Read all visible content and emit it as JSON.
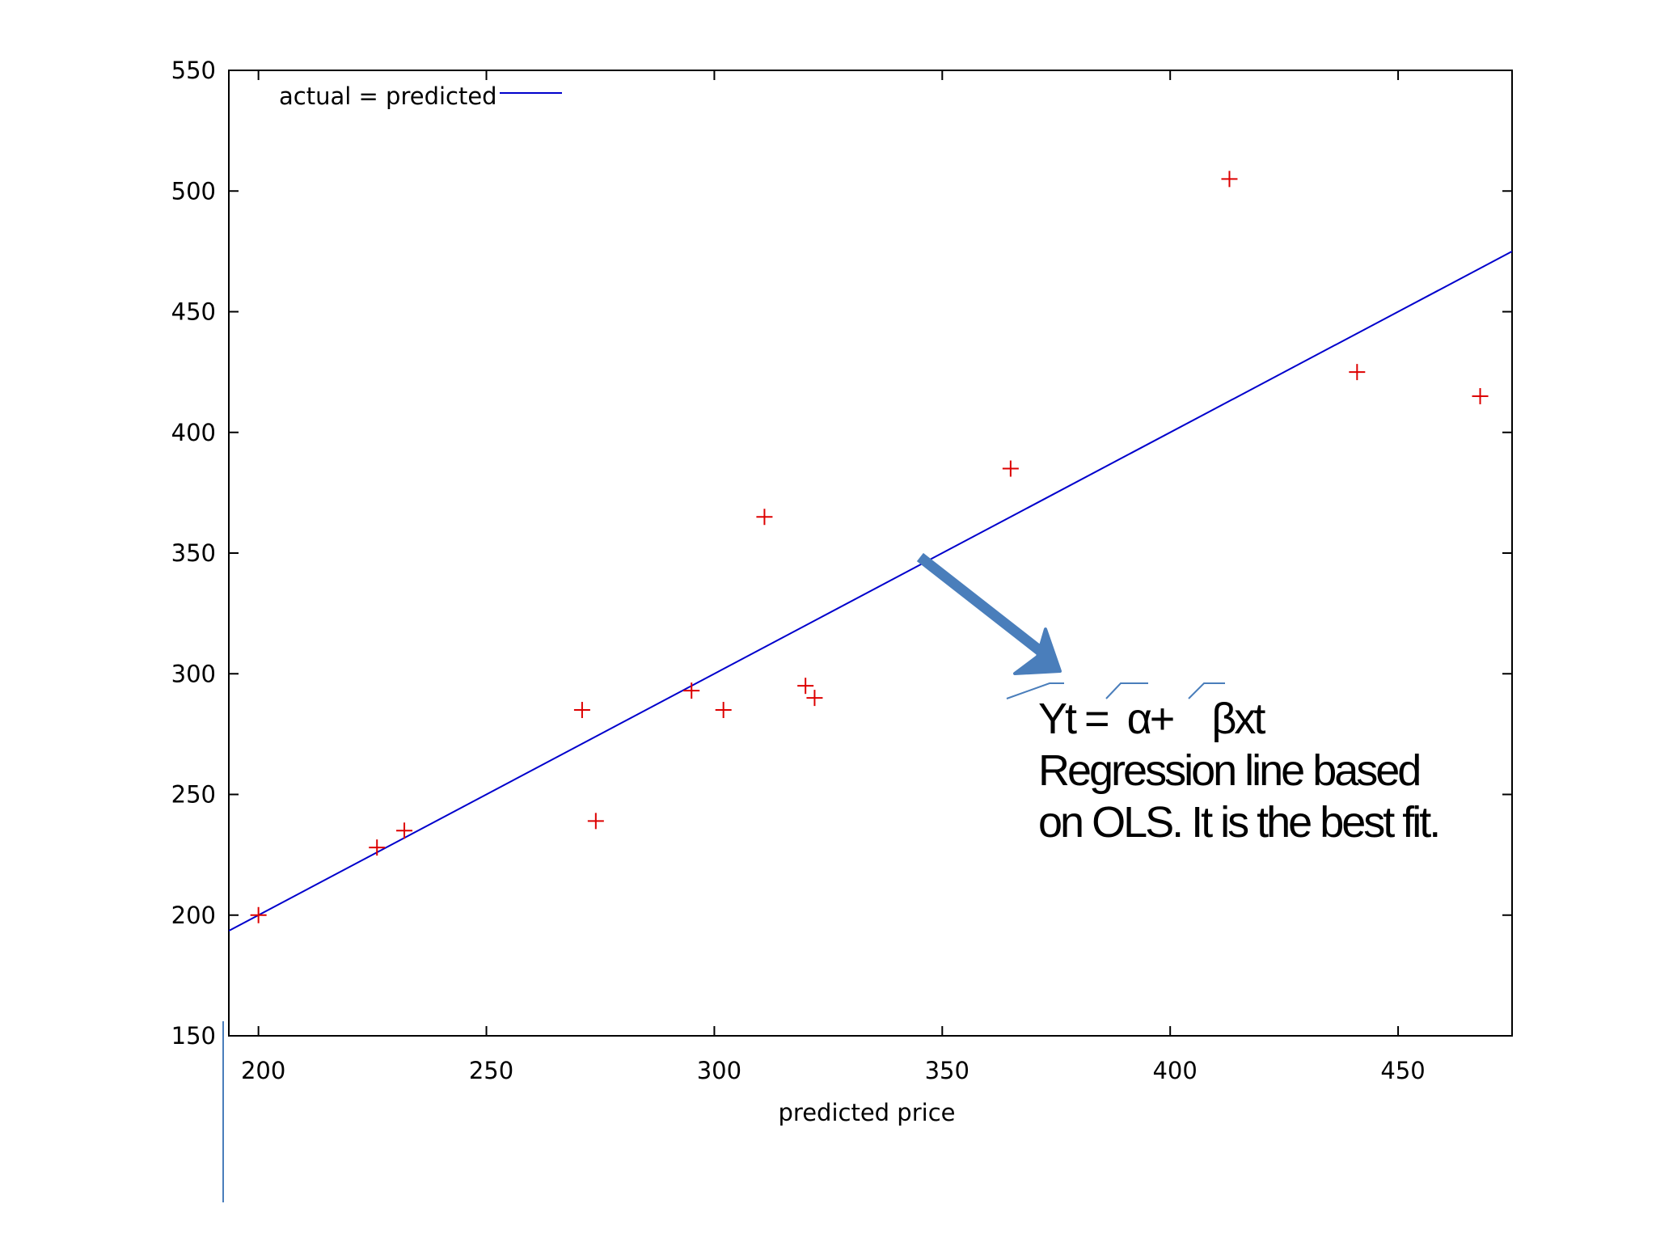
{
  "chart_data": {
    "type": "scatter",
    "title": "",
    "xlabel": "predicted price",
    "ylabel": "",
    "xlim": [
      193.5,
      475
    ],
    "ylim": [
      150,
      550
    ],
    "x_ticks": [
      200,
      250,
      300,
      350,
      400,
      450
    ],
    "y_ticks": [
      150,
      200,
      250,
      300,
      350,
      400,
      450,
      500,
      550
    ],
    "grid": false,
    "legend": {
      "position": "top-left",
      "entries": [
        {
          "label": "actual = predicted",
          "style": "line",
          "color": "#0000cc"
        }
      ]
    },
    "series": [
      {
        "style": "points",
        "marker": "plus",
        "color": "#dd0000",
        "points": [
          {
            "x": 200,
            "y": 200
          },
          {
            "x": 226,
            "y": 228
          },
          {
            "x": 232,
            "y": 235
          },
          {
            "x": 271,
            "y": 285
          },
          {
            "x": 274,
            "y": 239
          },
          {
            "x": 295,
            "y": 293
          },
          {
            "x": 302,
            "y": 285
          },
          {
            "x": 311,
            "y": 365
          },
          {
            "x": 320,
            "y": 295
          },
          {
            "x": 322,
            "y": 290
          },
          {
            "x": 365,
            "y": 385
          },
          {
            "x": 413,
            "y": 505
          },
          {
            "x": 441,
            "y": 425
          },
          {
            "x": 468,
            "y": 415
          }
        ]
      },
      {
        "name": "actual = predicted",
        "style": "line",
        "color": "#0000cc",
        "x": [
          193.5,
          475
        ],
        "y": [
          193.5,
          475
        ]
      }
    ],
    "annotation": {
      "text_lines": [
        "Yt =  α+    βxt",
        "Regression line based",
        "on OLS. It is the best fit."
      ],
      "arrow_color": "#4a7ebb",
      "arrow_from": {
        "x": 345,
        "y": 347
      },
      "arrow_to": {
        "x": 377,
        "y": 303
      }
    }
  }
}
